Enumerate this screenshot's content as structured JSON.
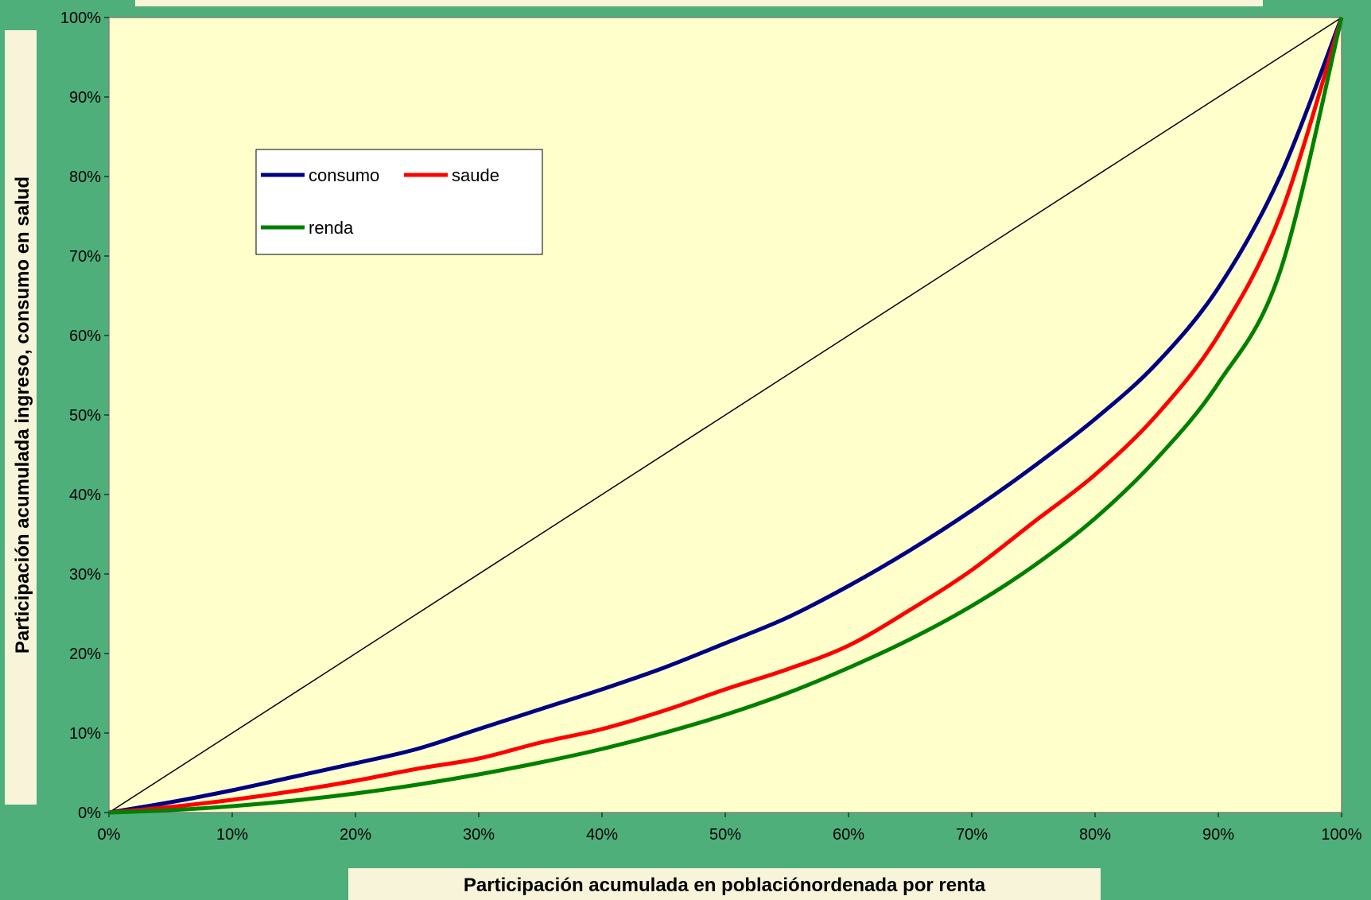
{
  "chart_data": {
    "type": "line",
    "title": "",
    "xlabel": "Participación acumulada en poblaciónordenada por renta",
    "ylabel": "Participación acumulada ingreso, consumo en salud",
    "xlim": [
      0,
      100
    ],
    "ylim": [
      0,
      100
    ],
    "x_ticks": [
      "0%",
      "10%",
      "20%",
      "30%",
      "40%",
      "50%",
      "60%",
      "70%",
      "80%",
      "90%",
      "100%"
    ],
    "y_ticks": [
      "0%",
      "10%",
      "20%",
      "30%",
      "40%",
      "50%",
      "60%",
      "70%",
      "80%",
      "90%",
      "100%"
    ],
    "grid": false,
    "legend_position": "top-left",
    "equality_line": {
      "x": [
        0,
        100
      ],
      "y": [
        0,
        100
      ],
      "color": "#000000"
    },
    "x": [
      0,
      5,
      10,
      15,
      20,
      25,
      30,
      35,
      40,
      45,
      50,
      55,
      60,
      65,
      70,
      75,
      80,
      85,
      90,
      95,
      100
    ],
    "series": [
      {
        "name": "consumo",
        "color": "#000080",
        "values": [
          0,
          1.3,
          2.8,
          4.5,
          6.2,
          8.0,
          10.5,
          13.0,
          15.5,
          18.2,
          21.3,
          24.5,
          28.5,
          33.0,
          38.0,
          43.5,
          49.5,
          56.5,
          66.0,
          80.0,
          100
        ]
      },
      {
        "name": "saude",
        "color": "#FF0000",
        "values": [
          0,
          0.7,
          1.6,
          2.7,
          4.0,
          5.5,
          6.8,
          8.8,
          10.5,
          12.8,
          15.5,
          18.0,
          21.0,
          25.5,
          30.5,
          36.5,
          42.5,
          50.0,
          60.0,
          75.0,
          100
        ]
      },
      {
        "name": "renda",
        "color": "#008000",
        "values": [
          0,
          0.3,
          0.8,
          1.5,
          2.4,
          3.5,
          4.8,
          6.3,
          8.0,
          10.0,
          12.3,
          15.0,
          18.2,
          21.8,
          26.0,
          31.0,
          37.0,
          44.5,
          54.0,
          68.0,
          100
        ]
      }
    ]
  }
}
